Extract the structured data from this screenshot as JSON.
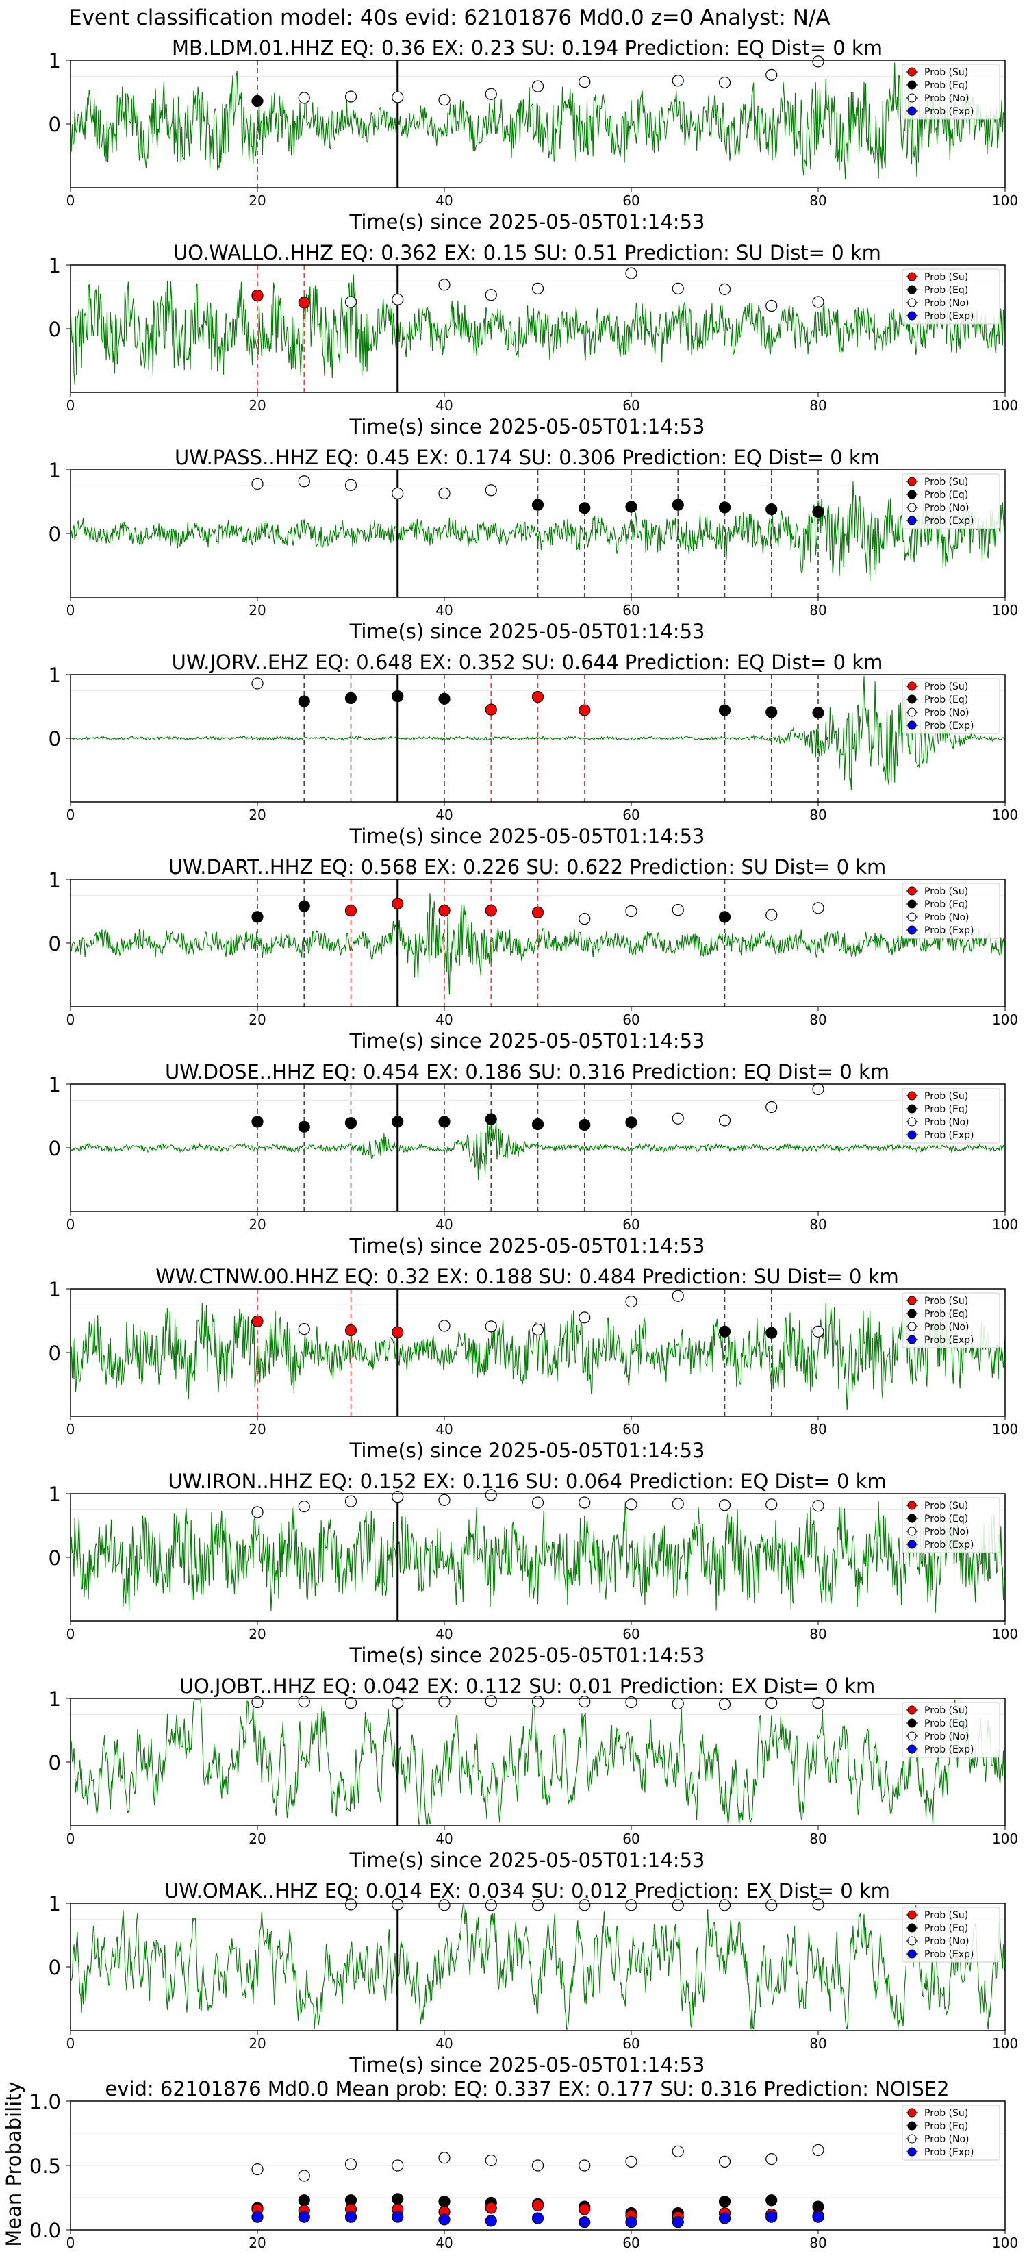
{
  "figure": {
    "suptitle": "Event classification model: 40s evid: 62101876 Md0.0 z=0 Analyst: N/A"
  },
  "legend_labels": [
    "Prob (Su)",
    "Prob (Eq)",
    "Prob (No)",
    "Prob (Exp)"
  ],
  "colors": {
    "waveform": "#008000",
    "su": "#ff0000",
    "eq": "#000000",
    "no": "#ffffff",
    "exp": "#0000ff",
    "eq_line": "#444444",
    "su_line": "#ff3333",
    "origin_line": "#000000"
  },
  "chart_data": [
    {
      "type": "line",
      "title": "MB.LDM.01.HHZ   EQ: 0.36  EX: 0.23  SU: 0.194   Prediction: EQ    Dist= 0 km",
      "xlabel": "Time(s) since 2025-05-05T01:14:53",
      "xlim": [
        0,
        100
      ],
      "ylim": [
        -1,
        1
      ],
      "xticks": [
        0,
        20,
        40,
        60,
        80,
        100
      ],
      "yticks": [
        0,
        1
      ],
      "origin_line_x": 35,
      "waveform": {
        "amp": 0.78,
        "style": "mixed",
        "seed": 11
      },
      "points": [
        {
          "x": 20,
          "y": 0.36,
          "class": "eq"
        },
        {
          "x": 25,
          "y": 0.41,
          "class": "no"
        },
        {
          "x": 30,
          "y": 0.43,
          "class": "no"
        },
        {
          "x": 35,
          "y": 0.42,
          "class": "no"
        },
        {
          "x": 40,
          "y": 0.38,
          "class": "no"
        },
        {
          "x": 45,
          "y": 0.47,
          "class": "no"
        },
        {
          "x": 50,
          "y": 0.59,
          "class": "no"
        },
        {
          "x": 55,
          "y": 0.66,
          "class": "no"
        },
        {
          "x": 65,
          "y": 0.68,
          "class": "no"
        },
        {
          "x": 70,
          "y": 0.65,
          "class": "no"
        },
        {
          "x": 75,
          "y": 0.77,
          "class": "no"
        },
        {
          "x": 80,
          "y": 0.98,
          "class": "no"
        }
      ]
    },
    {
      "type": "line",
      "title": "UO.WALLO..HHZ   EQ: 0.362  EX: 0.15  SU: 0.51   Prediction: SU    Dist= 0 km",
      "xlabel": "Time(s) since 2025-05-05T01:14:53",
      "xlim": [
        0,
        100
      ],
      "ylim": [
        -1,
        1
      ],
      "xticks": [
        0,
        20,
        40,
        60,
        80,
        100
      ],
      "yticks": [
        0,
        1
      ],
      "origin_line_x": 35,
      "waveform": {
        "amp": 0.72,
        "style": "early",
        "seed": 23
      },
      "points": [
        {
          "x": 20,
          "y": 0.52,
          "class": "su"
        },
        {
          "x": 25,
          "y": 0.41,
          "class": "su"
        },
        {
          "x": 30,
          "y": 0.42,
          "class": "no"
        },
        {
          "x": 35,
          "y": 0.46,
          "class": "no"
        },
        {
          "x": 40,
          "y": 0.69,
          "class": "no"
        },
        {
          "x": 45,
          "y": 0.53,
          "class": "no"
        },
        {
          "x": 50,
          "y": 0.63,
          "class": "no"
        },
        {
          "x": 60,
          "y": 0.87,
          "class": "no"
        },
        {
          "x": 65,
          "y": 0.63,
          "class": "no"
        },
        {
          "x": 70,
          "y": 0.62,
          "class": "no"
        },
        {
          "x": 75,
          "y": 0.36,
          "class": "no"
        },
        {
          "x": 80,
          "y": 0.42,
          "class": "no"
        }
      ]
    },
    {
      "type": "line",
      "title": "UW.PASS..HHZ   EQ: 0.45  EX: 0.174  SU: 0.306   Prediction: EQ    Dist= 0 km",
      "xlabel": "Time(s) since 2025-05-05T01:14:53",
      "xlim": [
        0,
        100
      ],
      "ylim": [
        -1,
        1
      ],
      "xticks": [
        0,
        20,
        40,
        60,
        80,
        100
      ],
      "yticks": [
        0,
        1
      ],
      "origin_line_x": 35,
      "waveform": {
        "amp": 0.5,
        "style": "late",
        "seed": 37
      },
      "points": [
        {
          "x": 20,
          "y": 0.78,
          "class": "no"
        },
        {
          "x": 25,
          "y": 0.82,
          "class": "no"
        },
        {
          "x": 30,
          "y": 0.76,
          "class": "no"
        },
        {
          "x": 35,
          "y": 0.63,
          "class": "no"
        },
        {
          "x": 40,
          "y": 0.63,
          "class": "no"
        },
        {
          "x": 45,
          "y": 0.68,
          "class": "no"
        },
        {
          "x": 50,
          "y": 0.45,
          "class": "eq"
        },
        {
          "x": 55,
          "y": 0.4,
          "class": "eq"
        },
        {
          "x": 60,
          "y": 0.42,
          "class": "eq"
        },
        {
          "x": 65,
          "y": 0.45,
          "class": "eq"
        },
        {
          "x": 70,
          "y": 0.41,
          "class": "eq"
        },
        {
          "x": 75,
          "y": 0.38,
          "class": "eq"
        },
        {
          "x": 80,
          "y": 0.34,
          "class": "eq"
        }
      ]
    },
    {
      "type": "line",
      "title": "UW.JORV..EHZ   EQ: 0.648  EX: 0.352  SU: 0.644   Prediction: EQ    Dist= 0 km",
      "xlabel": "Time(s) since 2025-05-05T01:14:53",
      "xlim": [
        0,
        100
      ],
      "ylim": [
        -1,
        1
      ],
      "xticks": [
        0,
        20,
        40,
        60,
        80,
        100
      ],
      "yticks": [
        0,
        1
      ],
      "origin_line_x": 35,
      "waveform": {
        "amp": 0.9,
        "style": "quiet_late",
        "seed": 41
      },
      "points": [
        {
          "x": 20,
          "y": 0.86,
          "class": "no"
        },
        {
          "x": 25,
          "y": 0.58,
          "class": "eq"
        },
        {
          "x": 30,
          "y": 0.63,
          "class": "eq"
        },
        {
          "x": 35,
          "y": 0.66,
          "class": "eq"
        },
        {
          "x": 40,
          "y": 0.62,
          "class": "eq"
        },
        {
          "x": 45,
          "y": 0.45,
          "class": "su"
        },
        {
          "x": 50,
          "y": 0.65,
          "class": "su"
        },
        {
          "x": 55,
          "y": 0.44,
          "class": "su"
        },
        {
          "x": 70,
          "y": 0.44,
          "class": "eq"
        },
        {
          "x": 75,
          "y": 0.41,
          "class": "eq"
        },
        {
          "x": 80,
          "y": 0.4,
          "class": "eq"
        }
      ]
    },
    {
      "type": "line",
      "title": "UW.DART..HHZ   EQ: 0.568  EX: 0.226  SU: 0.622   Prediction: SU    Dist= 0 km",
      "xlabel": "Time(s) since 2025-05-05T01:14:53",
      "xlim": [
        0,
        100
      ],
      "ylim": [
        -1,
        1
      ],
      "xticks": [
        0,
        20,
        40,
        60,
        80,
        100
      ],
      "yticks": [
        0,
        1
      ],
      "origin_line_x": 35,
      "waveform": {
        "amp": 0.55,
        "style": "burst40",
        "seed": 53
      },
      "points": [
        {
          "x": 20,
          "y": 0.41,
          "class": "eq"
        },
        {
          "x": 25,
          "y": 0.58,
          "class": "eq"
        },
        {
          "x": 30,
          "y": 0.51,
          "class": "su"
        },
        {
          "x": 35,
          "y": 0.62,
          "class": "su"
        },
        {
          "x": 40,
          "y": 0.51,
          "class": "su"
        },
        {
          "x": 45,
          "y": 0.51,
          "class": "su"
        },
        {
          "x": 50,
          "y": 0.48,
          "class": "su"
        },
        {
          "x": 55,
          "y": 0.38,
          "class": "no"
        },
        {
          "x": 60,
          "y": 0.5,
          "class": "no"
        },
        {
          "x": 65,
          "y": 0.52,
          "class": "no"
        },
        {
          "x": 70,
          "y": 0.41,
          "class": "eq"
        },
        {
          "x": 75,
          "y": 0.44,
          "class": "no"
        },
        {
          "x": 80,
          "y": 0.55,
          "class": "no"
        }
      ]
    },
    {
      "type": "line",
      "title": "UW.DOSE..HHZ   EQ: 0.454  EX: 0.186  SU: 0.316   Prediction: EQ    Dist= 0 km",
      "xlabel": "Time(s) since 2025-05-05T01:14:53",
      "xlim": [
        0,
        100
      ],
      "ylim": [
        -1,
        1
      ],
      "xticks": [
        0,
        20,
        40,
        60,
        80,
        100
      ],
      "yticks": [
        0,
        1
      ],
      "origin_line_x": 35,
      "waveform": {
        "amp": 0.45,
        "style": "burst45",
        "seed": 67
      },
      "points": [
        {
          "x": 20,
          "y": 0.41,
          "class": "eq"
        },
        {
          "x": 25,
          "y": 0.33,
          "class": "eq"
        },
        {
          "x": 30,
          "y": 0.39,
          "class": "eq"
        },
        {
          "x": 35,
          "y": 0.41,
          "class": "eq"
        },
        {
          "x": 40,
          "y": 0.41,
          "class": "eq"
        },
        {
          "x": 45,
          "y": 0.45,
          "class": "eq"
        },
        {
          "x": 50,
          "y": 0.37,
          "class": "eq"
        },
        {
          "x": 55,
          "y": 0.36,
          "class": "eq"
        },
        {
          "x": 60,
          "y": 0.4,
          "class": "eq"
        },
        {
          "x": 65,
          "y": 0.46,
          "class": "no"
        },
        {
          "x": 70,
          "y": 0.43,
          "class": "no"
        },
        {
          "x": 75,
          "y": 0.64,
          "class": "no"
        },
        {
          "x": 80,
          "y": 0.92,
          "class": "no"
        }
      ]
    },
    {
      "type": "line",
      "title": "WW.CTNW.00.HHZ   EQ: 0.32  EX: 0.188  SU: 0.484   Prediction: SU    Dist= 0 km",
      "xlabel": "Time(s) since 2025-05-05T01:14:53",
      "xlim": [
        0,
        100
      ],
      "ylim": [
        -1,
        1
      ],
      "xticks": [
        0,
        20,
        40,
        60,
        80,
        100
      ],
      "yticks": [
        0,
        1
      ],
      "origin_line_x": 35,
      "waveform": {
        "amp": 0.78,
        "style": "mixed",
        "seed": 79
      },
      "points": [
        {
          "x": 20,
          "y": 0.49,
          "class": "su"
        },
        {
          "x": 25,
          "y": 0.37,
          "class": "no"
        },
        {
          "x": 30,
          "y": 0.35,
          "class": "su"
        },
        {
          "x": 35,
          "y": 0.32,
          "class": "su"
        },
        {
          "x": 40,
          "y": 0.42,
          "class": "no"
        },
        {
          "x": 45,
          "y": 0.41,
          "class": "no"
        },
        {
          "x": 50,
          "y": 0.36,
          "class": "no"
        },
        {
          "x": 55,
          "y": 0.55,
          "class": "no"
        },
        {
          "x": 60,
          "y": 0.8,
          "class": "no"
        },
        {
          "x": 65,
          "y": 0.89,
          "class": "no"
        },
        {
          "x": 70,
          "y": 0.33,
          "class": "eq"
        },
        {
          "x": 75,
          "y": 0.31,
          "class": "eq"
        },
        {
          "x": 80,
          "y": 0.33,
          "class": "no"
        }
      ]
    },
    {
      "type": "line",
      "title": "UW.IRON..HHZ   EQ: 0.152  EX: 0.116  SU: 0.064   Prediction: EQ    Dist= 0 km",
      "xlabel": "Time(s) since 2025-05-05T01:14:53",
      "xlim": [
        0,
        100
      ],
      "ylim": [
        -1,
        1
      ],
      "xticks": [
        0,
        20,
        40,
        60,
        80,
        100
      ],
      "yticks": [
        0,
        1
      ],
      "origin_line_x": 35,
      "waveform": {
        "amp": 0.8,
        "style": "uniform",
        "seed": 83
      },
      "points": [
        {
          "x": 20,
          "y": 0.71,
          "class": "no"
        },
        {
          "x": 25,
          "y": 0.8,
          "class": "no"
        },
        {
          "x": 30,
          "y": 0.88,
          "class": "no"
        },
        {
          "x": 35,
          "y": 0.95,
          "class": "no"
        },
        {
          "x": 40,
          "y": 0.9,
          "class": "no"
        },
        {
          "x": 45,
          "y": 0.98,
          "class": "no"
        },
        {
          "x": 50,
          "y": 0.86,
          "class": "no"
        },
        {
          "x": 55,
          "y": 0.86,
          "class": "no"
        },
        {
          "x": 60,
          "y": 0.83,
          "class": "no"
        },
        {
          "x": 65,
          "y": 0.84,
          "class": "no"
        },
        {
          "x": 70,
          "y": 0.82,
          "class": "no"
        },
        {
          "x": 75,
          "y": 0.83,
          "class": "no"
        },
        {
          "x": 80,
          "y": 0.81,
          "class": "no"
        }
      ]
    },
    {
      "type": "line",
      "title": "UO.JOBT..HHZ   EQ: 0.042  EX: 0.112  SU: 0.01   Prediction: EX    Dist= 0 km",
      "xlabel": "Time(s) since 2025-05-05T01:14:53",
      "xlim": [
        0,
        100
      ],
      "ylim": [
        -1,
        1
      ],
      "xticks": [
        0,
        20,
        40,
        60,
        80,
        100
      ],
      "yticks": [
        0,
        1
      ],
      "origin_line_x": 35,
      "waveform": {
        "amp": 0.75,
        "style": "smooth",
        "seed": 97
      },
      "points": [
        {
          "x": 20,
          "y": 0.94,
          "class": "no"
        },
        {
          "x": 25,
          "y": 0.95,
          "class": "no"
        },
        {
          "x": 30,
          "y": 0.93,
          "class": "no"
        },
        {
          "x": 35,
          "y": 0.93,
          "class": "no"
        },
        {
          "x": 40,
          "y": 0.95,
          "class": "no"
        },
        {
          "x": 45,
          "y": 0.96,
          "class": "no"
        },
        {
          "x": 50,
          "y": 0.95,
          "class": "no"
        },
        {
          "x": 55,
          "y": 0.95,
          "class": "no"
        },
        {
          "x": 60,
          "y": 0.94,
          "class": "no"
        },
        {
          "x": 65,
          "y": 0.92,
          "class": "no"
        },
        {
          "x": 70,
          "y": 0.91,
          "class": "no"
        },
        {
          "x": 75,
          "y": 0.93,
          "class": "no"
        },
        {
          "x": 80,
          "y": 0.93,
          "class": "no"
        }
      ]
    },
    {
      "type": "line",
      "title": "UW.OMAK..HHZ   EQ: 0.014  EX: 0.034  SU: 0.012   Prediction: EX    Dist= 0 km",
      "xlabel": "Time(s) since 2025-05-05T01:14:53",
      "xlim": [
        0,
        100
      ],
      "ylim": [
        -1,
        1
      ],
      "xticks": [
        0,
        20,
        40,
        60,
        80,
        100
      ],
      "yticks": [
        0,
        1
      ],
      "origin_line_x": 35,
      "waveform": {
        "amp": 0.75,
        "style": "smooth",
        "seed": 101
      },
      "points": [
        {
          "x": 30,
          "y": 0.98,
          "class": "no"
        },
        {
          "x": 35,
          "y": 0.98,
          "class": "no"
        },
        {
          "x": 40,
          "y": 0.97,
          "class": "no"
        },
        {
          "x": 45,
          "y": 0.97,
          "class": "no"
        },
        {
          "x": 50,
          "y": 0.97,
          "class": "no"
        },
        {
          "x": 55,
          "y": 0.97,
          "class": "no"
        },
        {
          "x": 60,
          "y": 0.97,
          "class": "no"
        },
        {
          "x": 65,
          "y": 0.97,
          "class": "no"
        },
        {
          "x": 70,
          "y": 0.97,
          "class": "no"
        },
        {
          "x": 75,
          "y": 0.97,
          "class": "no"
        },
        {
          "x": 80,
          "y": 0.98,
          "class": "no"
        }
      ]
    },
    {
      "type": "scatter",
      "title": "evid: 62101876  Md0.0   Mean prob:   EQ: 0.337  EX: 0.177  SU: 0.316   Prediction: NOISE2",
      "ylabel": "Mean Probability",
      "xlim": [
        0,
        100
      ],
      "ylim": [
        0,
        1
      ],
      "xticks": [
        0,
        20,
        40,
        60,
        80,
        100
      ],
      "yticks": [
        0.0,
        0.5,
        1.0
      ],
      "ytick_labels": [
        "0.0",
        "0.5",
        "1.0"
      ],
      "grid": "horizontal",
      "x": [
        20,
        25,
        30,
        35,
        40,
        45,
        50,
        55,
        60,
        65,
        70,
        75,
        80
      ],
      "series": [
        {
          "name": "Prob (No)",
          "class": "no",
          "values": [
            0.47,
            0.42,
            0.51,
            0.5,
            0.56,
            0.54,
            0.5,
            0.5,
            0.53,
            0.61,
            0.53,
            0.55,
            0.62
          ]
        },
        {
          "name": "Prob (Eq)",
          "class": "eq",
          "values": [
            0.17,
            0.23,
            0.23,
            0.24,
            0.22,
            0.21,
            0.2,
            0.18,
            0.13,
            0.13,
            0.22,
            0.23,
            0.18
          ]
        },
        {
          "name": "Prob (Su)",
          "class": "su",
          "values": [
            0.16,
            0.15,
            0.16,
            0.16,
            0.14,
            0.17,
            0.19,
            0.16,
            0.11,
            0.1,
            0.13,
            0.12,
            0.11
          ]
        },
        {
          "name": "Prob (Exp)",
          "class": "exp",
          "values": [
            0.1,
            0.1,
            0.1,
            0.1,
            0.08,
            0.07,
            0.09,
            0.06,
            0.06,
            0.06,
            0.09,
            0.1,
            0.1
          ]
        }
      ]
    }
  ]
}
